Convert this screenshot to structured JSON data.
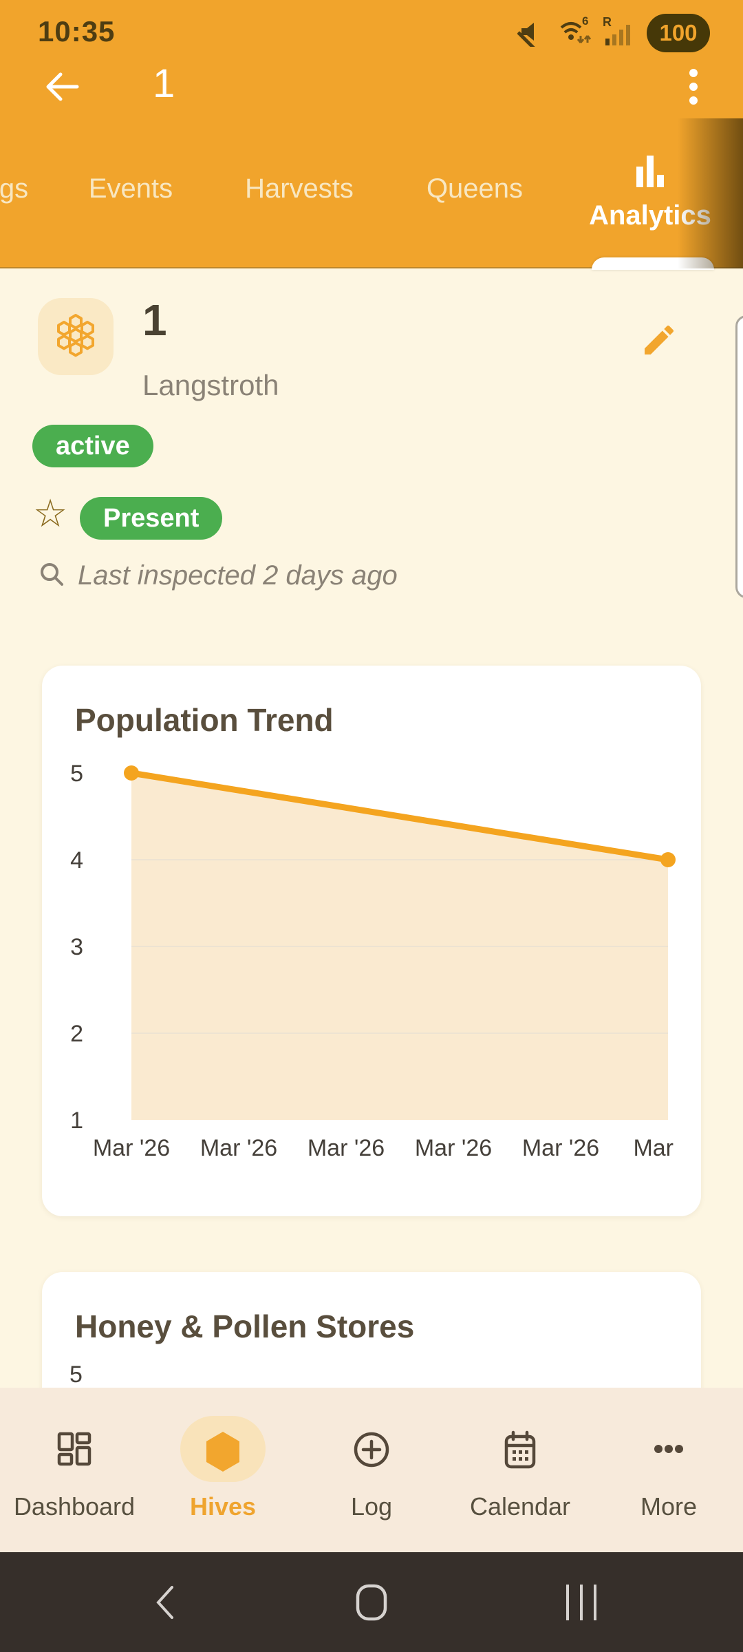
{
  "status_bar": {
    "time": "10:35",
    "battery_level": "100"
  },
  "app_bar": {
    "title": "1"
  },
  "tab_bar": {
    "active_tab": "Analytics",
    "items": [
      {
        "label": "gs"
      },
      {
        "label": "Events"
      },
      {
        "label": "Harvests"
      },
      {
        "label": "Queens"
      },
      {
        "label": "Analytics"
      }
    ]
  },
  "hive_header": {
    "name": "1",
    "hive_type": "Langstroth",
    "status_badge": "active",
    "queen_badge": "Present",
    "last_inspected": "Last inspected 2 days ago"
  },
  "chart_data": [
    {
      "type": "area",
      "title": "Population Trend",
      "x_tick_labels": [
        "Mar '26",
        "Mar '26",
        "Mar '26",
        "Mar '26",
        "Mar '26",
        "Mar"
      ],
      "points": [
        {
          "tick_index": 0,
          "value": 5
        },
        {
          "tick_index": 5,
          "value": 4
        }
      ],
      "yticks": [
        5,
        4,
        3,
        2,
        1
      ],
      "ylim": [
        1,
        5
      ],
      "gridlines": [
        4,
        3,
        2
      ],
      "xlabel": "",
      "ylabel": "",
      "legend": "none",
      "line_color": "#F4A41F",
      "fill_color": "#FAEAD0",
      "grid_color": "#EDE3D2",
      "tick_color": "#45403A"
    },
    {
      "type": "area",
      "title": "Honey & Pollen Stores",
      "yticks": [
        5
      ],
      "partially_visible": true
    }
  ],
  "bottom_nav": {
    "active_item": "Hives",
    "items": [
      {
        "label": "Dashboard"
      },
      {
        "label": "Hives"
      },
      {
        "label": "Log"
      },
      {
        "label": "Calendar"
      },
      {
        "label": "More"
      }
    ]
  },
  "system_nav": {
    "buttons": [
      "back",
      "home",
      "recents"
    ]
  },
  "colors": {
    "header_orange": "#F1A42C",
    "accent_orange": "#F2A62E",
    "badge_green": "#4BAE4F",
    "page_bg": "#FDF6E2",
    "bottom_nav_bg": "#F7EADB"
  }
}
